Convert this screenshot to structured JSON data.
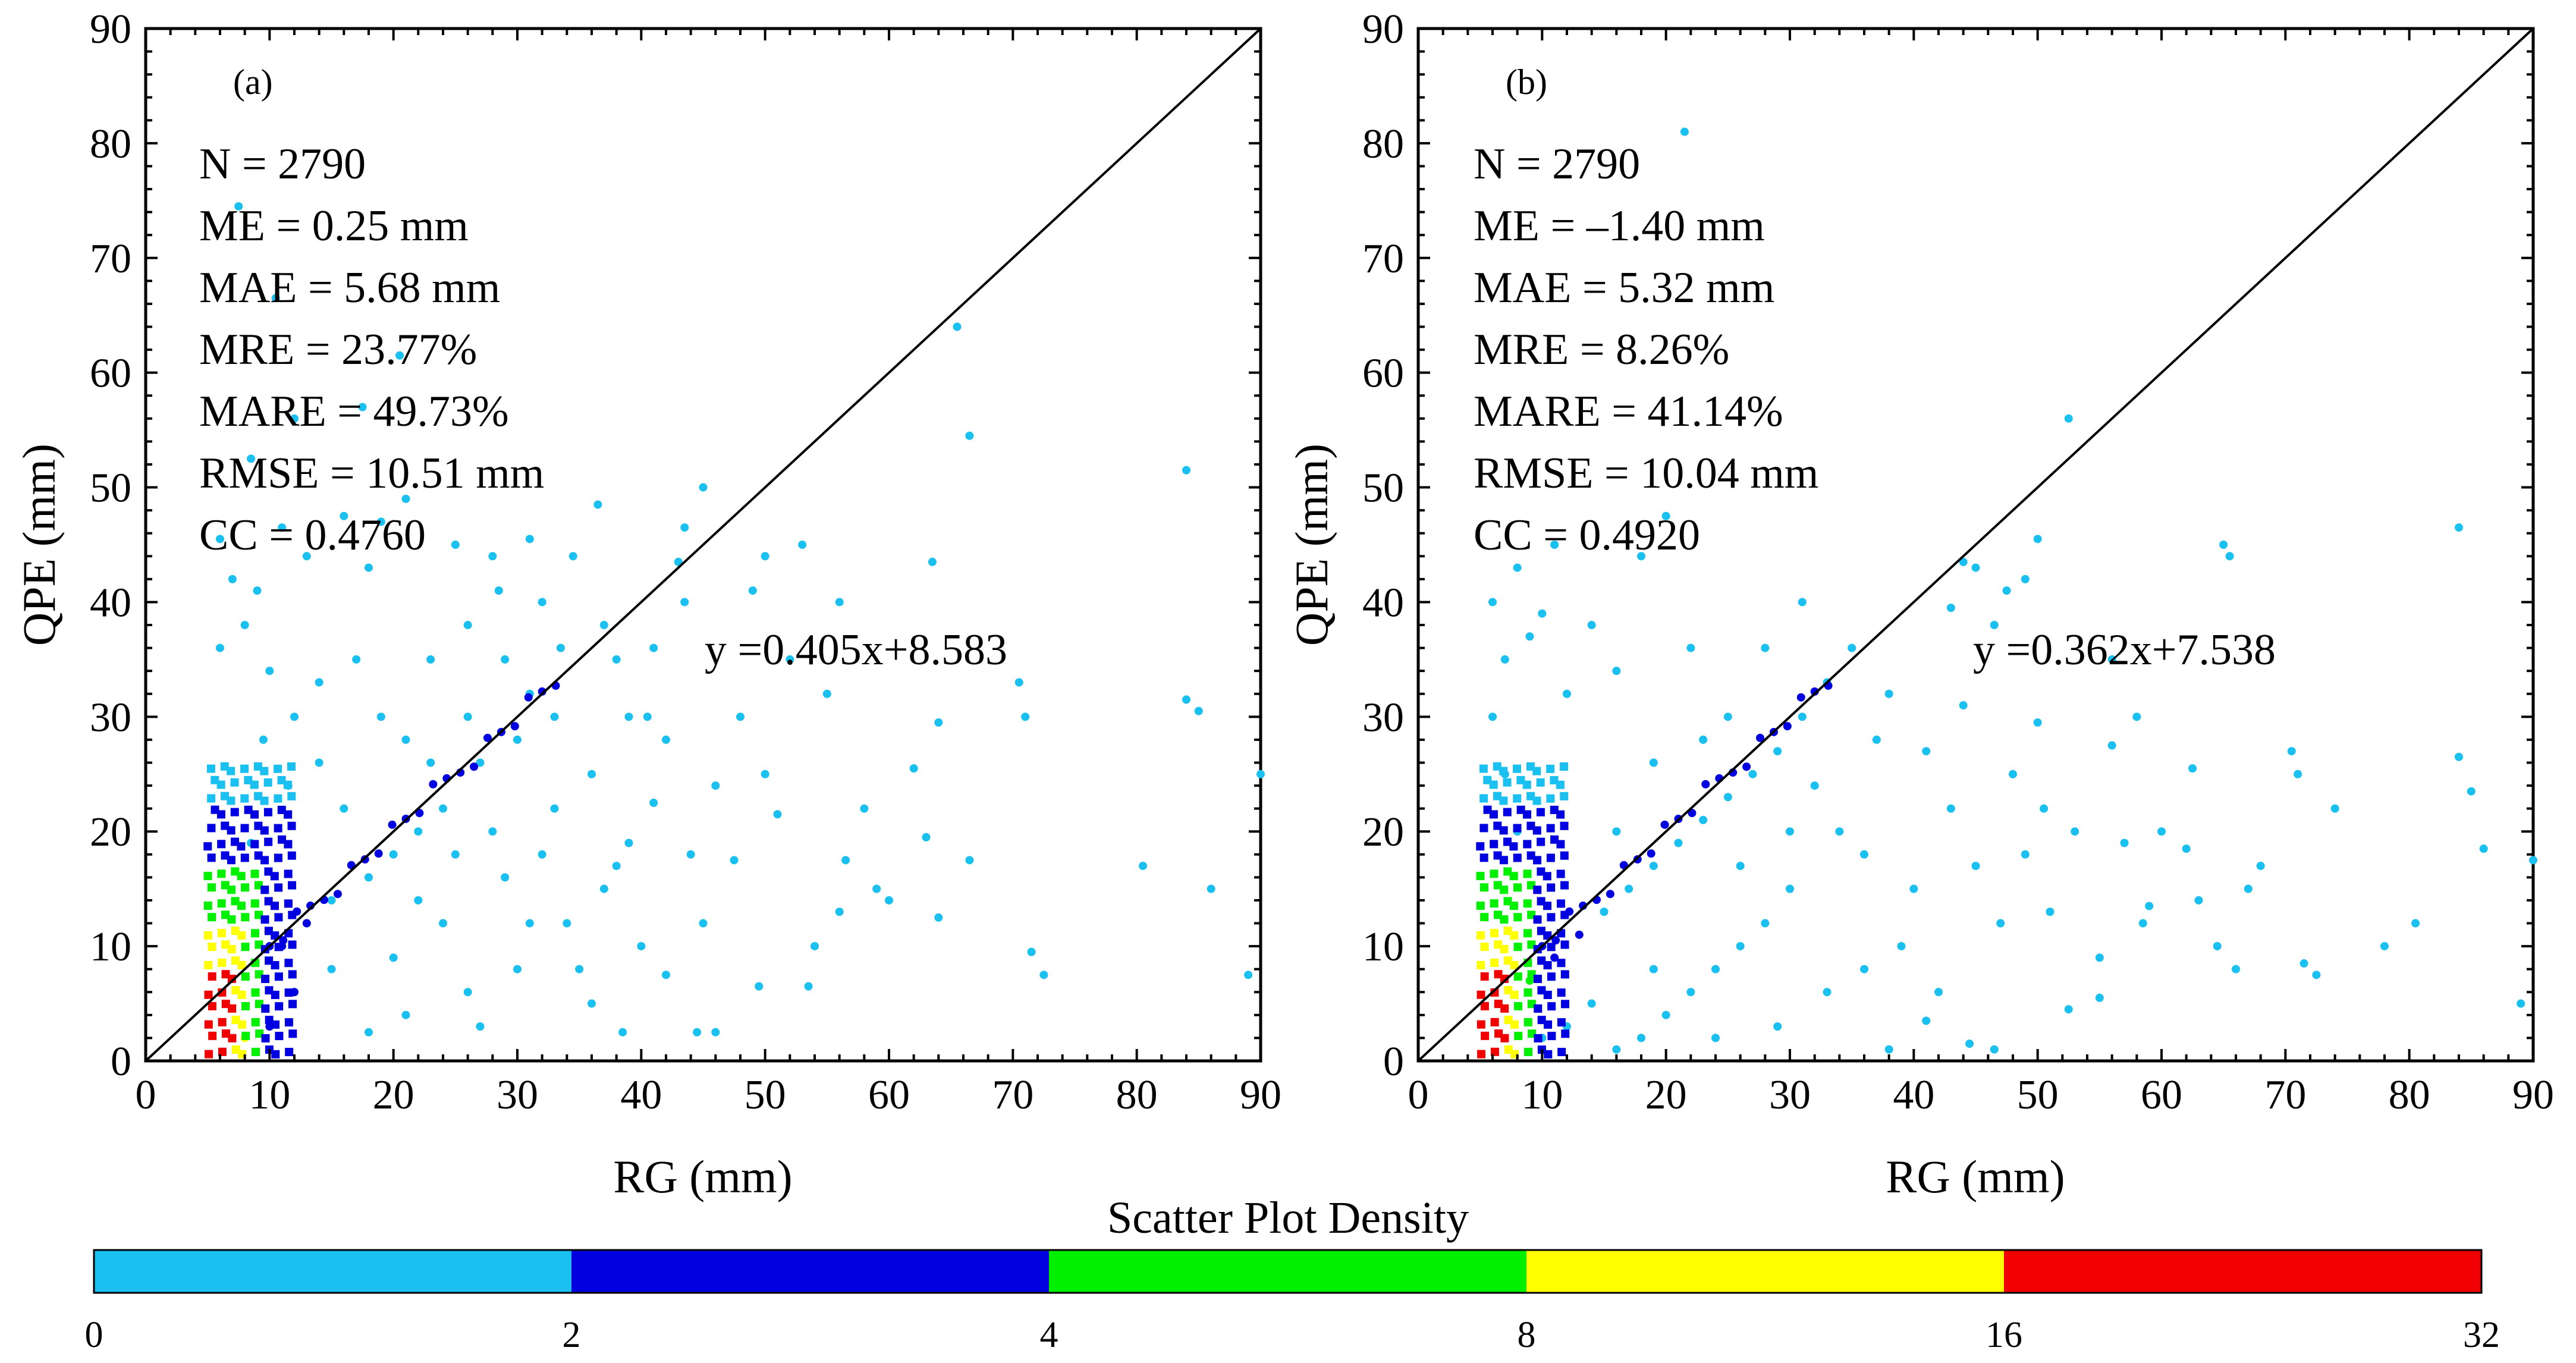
{
  "chart_data": [
    {
      "type": "scatter",
      "panel_label": "(a)",
      "xlabel": "RG (mm)",
      "ylabel": "QPE (mm)",
      "xlim": [
        0,
        90
      ],
      "ylim": [
        0,
        90
      ],
      "xticks": [
        0,
        10,
        20,
        30,
        40,
        50,
        60,
        70,
        80,
        90
      ],
      "yticks": [
        0,
        10,
        20,
        30,
        40,
        50,
        60,
        70,
        80,
        90
      ],
      "reference_line": "1:1",
      "stats": [
        "N = 2790",
        "ME = 0.25 mm",
        "MAE = 5.68 mm",
        "MRE = 23.77%",
        "MARE = 49.73%",
        "RMSE = 10.51 mm",
        "CC = 0.4760"
      ],
      "fit_equation": "y =0.405x+8.583",
      "fit": {
        "slope": 0.405,
        "intercept": 8.583
      },
      "n_points": 2790,
      "sample_points": [
        [
          65.5,
          64
        ],
        [
          66.5,
          54.5
        ],
        [
          84,
          51.5
        ],
        [
          84,
          31.5
        ],
        [
          85,
          30.5
        ],
        [
          90,
          25
        ],
        [
          80.5,
          17
        ],
        [
          86,
          15
        ],
        [
          89,
          7.5
        ],
        [
          71.5,
          9.5
        ],
        [
          72.5,
          7.5
        ],
        [
          71,
          30
        ],
        [
          70.5,
          33
        ],
        [
          63.5,
          43.5
        ],
        [
          56,
          40
        ],
        [
          64,
          29.5
        ],
        [
          62,
          25.5
        ],
        [
          56.5,
          17.5
        ],
        [
          59,
          15
        ],
        [
          63,
          19.5
        ],
        [
          66.5,
          17.5
        ],
        [
          53,
          45
        ],
        [
          50,
          44
        ],
        [
          49,
          41
        ],
        [
          45,
          50
        ],
        [
          43.5,
          46.5
        ],
        [
          43,
          43.5
        ],
        [
          43.5,
          40
        ],
        [
          50,
          25
        ],
        [
          51,
          21.5
        ],
        [
          47.5,
          17.5
        ],
        [
          54,
          10
        ],
        [
          56,
          13
        ],
        [
          49.5,
          6.5
        ],
        [
          53.5,
          6.5
        ],
        [
          44.5,
          2.5
        ],
        [
          46,
          2.5
        ],
        [
          38.5,
          2.5
        ],
        [
          42,
          7.5
        ],
        [
          36.5,
          48.5
        ],
        [
          37,
          38
        ],
        [
          38,
          35
        ],
        [
          40.5,
          30
        ],
        [
          36,
          25
        ],
        [
          41,
          22.5
        ],
        [
          39,
          19
        ],
        [
          37,
          15
        ],
        [
          40,
          10
        ],
        [
          45,
          12
        ],
        [
          58,
          22
        ],
        [
          60,
          14
        ],
        [
          64,
          12.5
        ],
        [
          33.5,
          36
        ],
        [
          31,
          32
        ],
        [
          30,
          28
        ],
        [
          27,
          26
        ],
        [
          24,
          22
        ],
        [
          22,
          20
        ],
        [
          20,
          18
        ],
        [
          18,
          16
        ],
        [
          15,
          14
        ],
        [
          13,
          12
        ],
        [
          11,
          10
        ],
        [
          29,
          35
        ],
        [
          33,
          30
        ],
        [
          26,
          30
        ],
        [
          23,
          26
        ],
        [
          28,
          20
        ],
        [
          32,
          18
        ],
        [
          34,
          12
        ],
        [
          30,
          8
        ],
        [
          26,
          6
        ],
        [
          21,
          4
        ],
        [
          18,
          2.5
        ],
        [
          15,
          8
        ],
        [
          12,
          6
        ],
        [
          10,
          3
        ],
        [
          8,
          2
        ],
        [
          16,
          22
        ],
        [
          14,
          26
        ],
        [
          12,
          30
        ],
        [
          10,
          34
        ],
        [
          8,
          38
        ],
        [
          6,
          36
        ],
        [
          9,
          41
        ],
        [
          7,
          42
        ],
        [
          7.5,
          74.5
        ],
        [
          10.5,
          66.5
        ],
        [
          20.5,
          61.5
        ],
        [
          17.5,
          57
        ],
        [
          16,
          47.5
        ],
        [
          19,
          47
        ],
        [
          11,
          46.5
        ],
        [
          6,
          45.5
        ],
        [
          13,
          44
        ],
        [
          18,
          43
        ],
        [
          21,
          49
        ],
        [
          25,
          45
        ],
        [
          28.5,
          41
        ],
        [
          34.5,
          44
        ],
        [
          31,
          45.5
        ],
        [
          8.5,
          52.5
        ],
        [
          12,
          56
        ],
        [
          9.5,
          28
        ],
        [
          11.5,
          24
        ],
        [
          8.5,
          19
        ],
        [
          14,
          33
        ],
        [
          19,
          30
        ],
        [
          21,
          28
        ],
        [
          17,
          35
        ],
        [
          23,
          35
        ],
        [
          26,
          38
        ],
        [
          29,
          16
        ],
        [
          33,
          22
        ],
        [
          36,
          5
        ],
        [
          24,
          12
        ],
        [
          27,
          3
        ],
        [
          20,
          9
        ],
        [
          22,
          14
        ],
        [
          25,
          18
        ],
        [
          31,
          12
        ],
        [
          35,
          8
        ],
        [
          38,
          17
        ],
        [
          42,
          28
        ],
        [
          44,
          18
        ],
        [
          46,
          24
        ],
        [
          48,
          30
        ],
        [
          52,
          35
        ],
        [
          55,
          32
        ],
        [
          41,
          36
        ],
        [
          39,
          30
        ],
        [
          32,
          40
        ],
        [
          28,
          44
        ]
      ],
      "density_legend_bins": [
        "0-2",
        "2-4",
        "4-8",
        "8-16",
        "16-32"
      ]
    },
    {
      "type": "scatter",
      "panel_label": "(b)",
      "xlabel": "RG (mm)",
      "ylabel": "QPE (mm)",
      "xlim": [
        0,
        90
      ],
      "ylim": [
        0,
        90
      ],
      "xticks": [
        0,
        10,
        20,
        30,
        40,
        50,
        60,
        70,
        80,
        90
      ],
      "yticks": [
        0,
        10,
        20,
        30,
        40,
        50,
        60,
        70,
        80,
        90
      ],
      "reference_line": "1:1",
      "stats": [
        "N = 2790",
        "ME = –1.40 mm",
        "MAE = 5.32 mm",
        "MRE = 8.26%",
        "MARE = 41.14%",
        "RMSE = 10.04 mm",
        "CC = 0.4920"
      ],
      "fit_equation": "y =0.362x+7.538",
      "fit": {
        "slope": 0.362,
        "intercept": 7.538
      },
      "n_points": 2790,
      "sample_points": [
        [
          21.5,
          81
        ],
        [
          52.5,
          56
        ],
        [
          84,
          46.5
        ],
        [
          65,
          45
        ],
        [
          65.5,
          44
        ],
        [
          50,
          45.5
        ],
        [
          49,
          42
        ],
        [
          47.5,
          41
        ],
        [
          44,
          43.5
        ],
        [
          45,
          43
        ],
        [
          43,
          39.5
        ],
        [
          46.5,
          38
        ],
        [
          84,
          26.5
        ],
        [
          85,
          23.5
        ],
        [
          86,
          18.5
        ],
        [
          90,
          17.5
        ],
        [
          89,
          5
        ],
        [
          80.5,
          12
        ],
        [
          72.5,
          7.5
        ],
        [
          71.5,
          8.5
        ],
        [
          70.5,
          27
        ],
        [
          71,
          25
        ],
        [
          67,
          15
        ],
        [
          64.5,
          10
        ],
        [
          62,
          18.5
        ],
        [
          62.5,
          25.5
        ],
        [
          59,
          13.5
        ],
        [
          58.5,
          12
        ],
        [
          56,
          27.5
        ],
        [
          57,
          19
        ],
        [
          55,
          9
        ],
        [
          55,
          5.5
        ],
        [
          52.5,
          4.5
        ],
        [
          56,
          35
        ],
        [
          50,
          29.5
        ],
        [
          50.5,
          22
        ],
        [
          49,
          18
        ],
        [
          51,
          13
        ],
        [
          46.5,
          1
        ],
        [
          44.5,
          1.5
        ],
        [
          41,
          3.5
        ],
        [
          38,
          1
        ],
        [
          40,
          15
        ],
        [
          37,
          28
        ],
        [
          35,
          36
        ],
        [
          33,
          33
        ],
        [
          31,
          30
        ],
        [
          29,
          27
        ],
        [
          27,
          25
        ],
        [
          25,
          23
        ],
        [
          23,
          21
        ],
        [
          21,
          19
        ],
        [
          19,
          17
        ],
        [
          17,
          15
        ],
        [
          15,
          13
        ],
        [
          13,
          11
        ],
        [
          11,
          9
        ],
        [
          9,
          7
        ],
        [
          32,
          24
        ],
        [
          34,
          20
        ],
        [
          36,
          18
        ],
        [
          30,
          15
        ],
        [
          28,
          12
        ],
        [
          26,
          10
        ],
        [
          24,
          8
        ],
        [
          22,
          6
        ],
        [
          20,
          4
        ],
        [
          18,
          2
        ],
        [
          16,
          1
        ],
        [
          14,
          5
        ],
        [
          12,
          3
        ],
        [
          10,
          2
        ],
        [
          8,
          20
        ],
        [
          7,
          25
        ],
        [
          6,
          30
        ],
        [
          7,
          35
        ],
        [
          9,
          37
        ],
        [
          10,
          39
        ],
        [
          14,
          38
        ],
        [
          18,
          44
        ],
        [
          20,
          47.5
        ],
        [
          16,
          34
        ],
        [
          12,
          32
        ],
        [
          22,
          36
        ],
        [
          25,
          30
        ],
        [
          28,
          36
        ],
        [
          31,
          40
        ],
        [
          38,
          32
        ],
        [
          41,
          27
        ],
        [
          43,
          22
        ],
        [
          45,
          17
        ],
        [
          47,
          12
        ],
        [
          39,
          10
        ],
        [
          33,
          6
        ],
        [
          29,
          3
        ],
        [
          24,
          2
        ],
        [
          19,
          8
        ],
        [
          16,
          20
        ],
        [
          19,
          26
        ],
        [
          23,
          28
        ],
        [
          26,
          17
        ],
        [
          30,
          20
        ],
        [
          36,
          8
        ],
        [
          42,
          6
        ],
        [
          44,
          31
        ],
        [
          48,
          25
        ],
        [
          53,
          20
        ],
        [
          58,
          30
        ],
        [
          60,
          20
        ],
        [
          63,
          14
        ],
        [
          66,
          8
        ],
        [
          68,
          17
        ],
        [
          74,
          22
        ],
        [
          78,
          10
        ],
        [
          6,
          40
        ],
        [
          8,
          43
        ],
        [
          11,
          45
        ]
      ],
      "density_legend_bins": [
        "0-2",
        "2-4",
        "4-8",
        "8-16",
        "16-32"
      ]
    }
  ],
  "colorbar": {
    "title": "Scatter Plot Density",
    "tick_labels": [
      "0",
      "2",
      "4",
      "8",
      "16",
      "32"
    ],
    "colors": [
      "#19c0f0",
      "#0000e0",
      "#00f000",
      "#ffff00",
      "#f00000"
    ]
  },
  "palette": {
    "density_low": "#19c0f0",
    "density_2": "#0000e0",
    "density_4": "#00f000",
    "density_8": "#ffff00",
    "density_16": "#f00000"
  }
}
